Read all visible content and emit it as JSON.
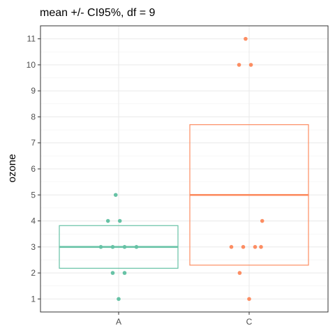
{
  "chart_data": {
    "type": "box",
    "title": "mean +/- CI95%, df = 9",
    "xlabel": "",
    "ylabel": "ozone",
    "categories": [
      "A",
      "C"
    ],
    "ylim": [
      0.5,
      11.5
    ],
    "yticks": [
      1,
      2,
      3,
      4,
      5,
      6,
      7,
      8,
      9,
      10,
      11
    ],
    "grid": true,
    "series": [
      {
        "category": "A",
        "color": "#66C2A5",
        "mean": 3.0,
        "ci_low": 2.18,
        "ci_high": 3.82,
        "points": [
          {
            "x": -0.05,
            "y": 5
          },
          {
            "x": -0.18,
            "y": 4
          },
          {
            "x": 0.02,
            "y": 4
          },
          {
            "x": -0.3,
            "y": 3
          },
          {
            "x": -0.1,
            "y": 3
          },
          {
            "x": 0.1,
            "y": 3
          },
          {
            "x": 0.3,
            "y": 3
          },
          {
            "x": -0.1,
            "y": 2
          },
          {
            "x": 0.1,
            "y": 2
          },
          {
            "x": 0.0,
            "y": 1
          }
        ]
      },
      {
        "category": "C",
        "color": "#FC8D62",
        "mean": 5.0,
        "ci_low": 2.3,
        "ci_high": 7.7,
        "points": [
          {
            "x": -0.06,
            "y": 11
          },
          {
            "x": -0.17,
            "y": 10
          },
          {
            "x": 0.03,
            "y": 10
          },
          {
            "x": 0.22,
            "y": 4
          },
          {
            "x": -0.3,
            "y": 3
          },
          {
            "x": -0.1,
            "y": 3
          },
          {
            "x": 0.1,
            "y": 3
          },
          {
            "x": 0.2,
            "y": 3
          },
          {
            "x": -0.16,
            "y": 2
          },
          {
            "x": 0.0,
            "y": 1
          }
        ]
      }
    ]
  }
}
